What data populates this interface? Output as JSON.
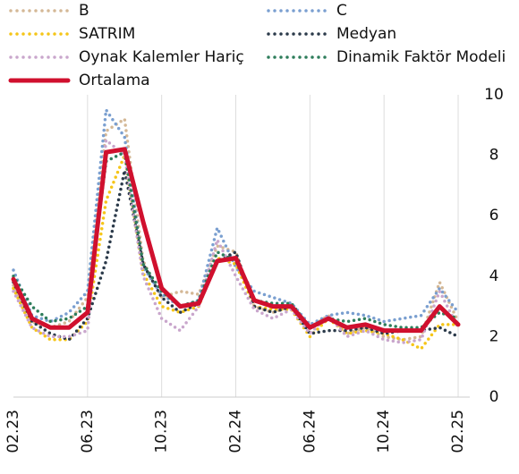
{
  "chart_data": {
    "type": "line",
    "categories": [
      "02.23",
      null,
      null,
      null,
      "06.23",
      null,
      null,
      null,
      "10.23",
      null,
      null,
      null,
      "02.24",
      null,
      null,
      null,
      "06.24",
      null,
      null,
      null,
      "10.24",
      null,
      null,
      null,
      "02.25"
    ],
    "series": [
      {
        "name": "B",
        "color": "#d4b896",
        "style": "dotted",
        "values": [
          3.7,
          2.5,
          2.3,
          2.5,
          3.3,
          8.8,
          9.2,
          4.5,
          3.3,
          3.5,
          3.4,
          5.0,
          4.8,
          3.0,
          2.8,
          3.0,
          2.3,
          2.7,
          2.1,
          2.3,
          2.0,
          1.9,
          2.0,
          3.8,
          2.5
        ]
      },
      {
        "name": "C",
        "color": "#7a9fd0",
        "style": "dotted",
        "values": [
          4.2,
          2.7,
          2.5,
          2.8,
          3.5,
          9.5,
          8.6,
          4.3,
          3.4,
          3.0,
          3.2,
          5.6,
          4.3,
          3.5,
          3.3,
          3.1,
          2.4,
          2.7,
          2.8,
          2.7,
          2.5,
          2.6,
          2.7,
          3.6,
          2.8
        ]
      },
      {
        "name": "SATRIM",
        "color": "#f5c518",
        "style": "dotted",
        "values": [
          3.6,
          2.3,
          1.9,
          1.9,
          2.5,
          6.5,
          8.0,
          4.1,
          3.0,
          2.8,
          3.0,
          4.6,
          4.4,
          3.0,
          2.9,
          2.9,
          2.0,
          2.6,
          2.1,
          2.2,
          2.1,
          1.9,
          1.6,
          2.4,
          2.4
        ]
      },
      {
        "name": "Medyan",
        "color": "#2b3a4a",
        "style": "dotted",
        "values": [
          3.8,
          2.5,
          2.1,
          1.9,
          2.6,
          4.5,
          7.5,
          4.4,
          3.3,
          2.8,
          3.1,
          4.5,
          4.8,
          3.0,
          2.8,
          3.0,
          2.1,
          2.2,
          2.2,
          2.3,
          2.1,
          2.2,
          2.2,
          2.3,
          2.0
        ]
      },
      {
        "name": "Oynak Kalemler Hariç",
        "color": "#c9a6cc",
        "style": "dotted",
        "values": [
          3.5,
          2.3,
          2.0,
          2.0,
          2.2,
          8.5,
          8.0,
          4.0,
          2.6,
          2.2,
          3.0,
          5.2,
          4.0,
          2.9,
          2.6,
          2.9,
          2.1,
          2.7,
          2.0,
          2.2,
          1.9,
          1.8,
          1.9,
          3.5,
          2.3
        ]
      },
      {
        "name": "Dinamik Faktör Modeli",
        "color": "#2e7d5b",
        "style": "dotted",
        "values": [
          4.0,
          3.0,
          2.5,
          2.6,
          3.0,
          7.8,
          8.1,
          4.4,
          3.5,
          3.0,
          3.2,
          4.8,
          4.5,
          3.2,
          3.1,
          3.1,
          2.3,
          2.6,
          2.5,
          2.6,
          2.4,
          2.3,
          2.3,
          2.8,
          2.6
        ]
      },
      {
        "name": "Ortalama",
        "color": "#d0102e",
        "style": "solid",
        "values": [
          3.9,
          2.6,
          2.3,
          2.3,
          2.8,
          8.1,
          8.2,
          5.8,
          3.6,
          3.0,
          3.1,
          4.5,
          4.6,
          3.2,
          3.0,
          3.0,
          2.3,
          2.6,
          2.3,
          2.4,
          2.2,
          2.2,
          2.2,
          3.0,
          2.4
        ]
      }
    ],
    "ylim": [
      0,
      10
    ],
    "yticks": [
      0,
      2,
      4,
      6,
      8,
      10
    ],
    "grid": true
  }
}
